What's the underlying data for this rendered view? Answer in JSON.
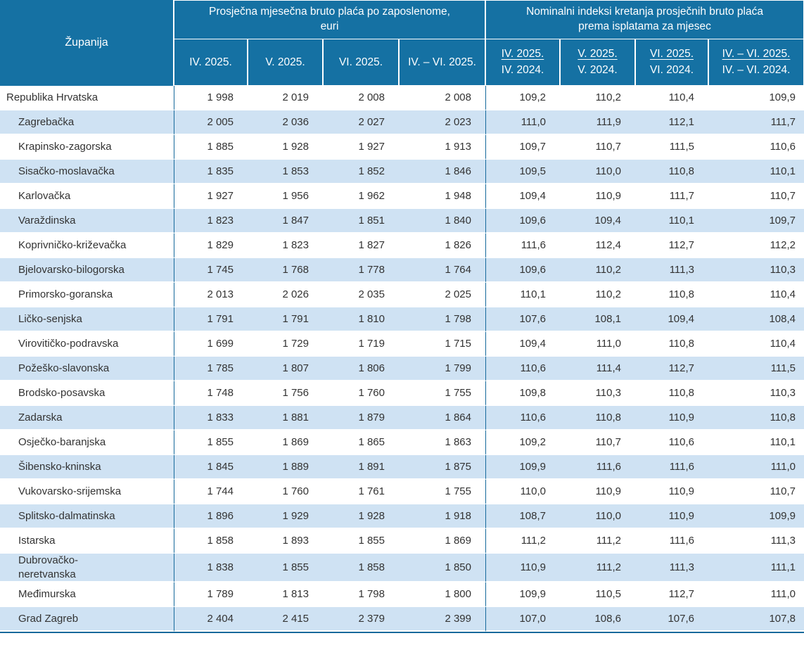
{
  "colors": {
    "header_bg": "#1571a3",
    "stripe_row_bg": "#cfe2f3",
    "separator_line": "#15699b",
    "body_text": "#333333",
    "header_text": "#ffffff"
  },
  "table": {
    "header": {
      "county": "Županija",
      "group_salary": "Prosječna mjesečna bruto plaća po zaposlenome,\neuri",
      "group_indices": "Nominalni indeksi kretanja prosječnih bruto plaća\nprema isplatama za mjesec",
      "salary_cols": [
        "IV. 2025.",
        "V. 2025.",
        "VI. 2025.",
        "IV. – VI. 2025."
      ],
      "index_cols": [
        {
          "num": "IV. 2025.",
          "den": "IV. 2024."
        },
        {
          "num": "V. 2025.",
          "den": "V. 2024."
        },
        {
          "num": "VI. 2025.",
          "den": "VI. 2024."
        },
        {
          "num": "IV. – VI. 2025.",
          "den": "IV. – VI. 2024."
        }
      ]
    },
    "rows": [
      {
        "name": "Republika Hrvatska",
        "indent": false,
        "values": [
          "1 998",
          "2 019",
          "2 008",
          "2 008",
          "109,2",
          "110,2",
          "110,4",
          "109,9"
        ]
      },
      {
        "name": "Zagrebačka",
        "indent": true,
        "values": [
          "2 005",
          "2 036",
          "2 027",
          "2 023",
          "111,0",
          "111,9",
          "112,1",
          "111,7"
        ]
      },
      {
        "name": "Krapinsko-zagorska",
        "indent": true,
        "values": [
          "1 885",
          "1 928",
          "1 927",
          "1 913",
          "109,7",
          "110,7",
          "111,5",
          "110,6"
        ]
      },
      {
        "name": "Sisačko-moslavačka",
        "indent": true,
        "values": [
          "1 835",
          "1 853",
          "1 852",
          "1 846",
          "109,5",
          "110,0",
          "110,8",
          "110,1"
        ]
      },
      {
        "name": "Karlovačka",
        "indent": true,
        "values": [
          "1 927",
          "1 956",
          "1 962",
          "1 948",
          "109,4",
          "110,9",
          "111,7",
          "110,7"
        ]
      },
      {
        "name": "Varaždinska",
        "indent": true,
        "values": [
          "1 823",
          "1 847",
          "1 851",
          "1 840",
          "109,6",
          "109,4",
          "110,1",
          "109,7"
        ]
      },
      {
        "name": "Koprivničko-križevačka",
        "indent": true,
        "values": [
          "1 829",
          "1 823",
          "1 827",
          "1 826",
          "111,6",
          "112,4",
          "112,7",
          "112,2"
        ]
      },
      {
        "name": "Bjelovarsko-bilogorska",
        "indent": true,
        "values": [
          "1 745",
          "1 768",
          "1 778",
          "1 764",
          "109,6",
          "110,2",
          "111,3",
          "110,3"
        ]
      },
      {
        "name": "Primorsko-goranska",
        "indent": true,
        "values": [
          "2 013",
          "2 026",
          "2 035",
          "2 025",
          "110,1",
          "110,2",
          "110,8",
          "110,4"
        ]
      },
      {
        "name": "Ličko-senjska",
        "indent": true,
        "values": [
          "1 791",
          "1 791",
          "1 810",
          "1 798",
          "107,6",
          "108,1",
          "109,4",
          "108,4"
        ]
      },
      {
        "name": "Virovitičko-podravska",
        "indent": true,
        "values": [
          "1 699",
          "1 729",
          "1 719",
          "1 715",
          "109,4",
          "111,0",
          "110,8",
          "110,4"
        ]
      },
      {
        "name": "Požeško-slavonska",
        "indent": true,
        "values": [
          "1 785",
          "1 807",
          "1 806",
          "1 799",
          "110,6",
          "111,4",
          "112,7",
          "111,5"
        ]
      },
      {
        "name": "Brodsko-posavska",
        "indent": true,
        "values": [
          "1 748",
          "1 756",
          "1 760",
          "1 755",
          "109,8",
          "110,3",
          "110,8",
          "110,3"
        ]
      },
      {
        "name": "Zadarska",
        "indent": true,
        "values": [
          "1 833",
          "1 881",
          "1 879",
          "1 864",
          "110,6",
          "110,8",
          "110,9",
          "110,8"
        ]
      },
      {
        "name": "Osječko-baranjska",
        "indent": true,
        "values": [
          "1 855",
          "1 869",
          "1 865",
          "1 863",
          "109,2",
          "110,7",
          "110,6",
          "110,1"
        ]
      },
      {
        "name": "Šibensko-kninska",
        "indent": true,
        "values": [
          "1 845",
          "1 889",
          "1 891",
          "1 875",
          "109,9",
          "111,6",
          "111,6",
          "111,0"
        ]
      },
      {
        "name": "Vukovarsko-srijemska",
        "indent": true,
        "values": [
          "1 744",
          "1 760",
          "1 761",
          "1 755",
          "110,0",
          "110,9",
          "110,9",
          "110,7"
        ]
      },
      {
        "name": "Splitsko-dalmatinska",
        "indent": true,
        "values": [
          "1 896",
          "1 929",
          "1 928",
          "1 918",
          "108,7",
          "110,0",
          "110,9",
          "109,9"
        ]
      },
      {
        "name": "Istarska",
        "indent": true,
        "values": [
          "1 858",
          "1 893",
          "1 855",
          "1 869",
          "111,2",
          "111,2",
          "111,6",
          "111,3"
        ]
      },
      {
        "name": "Dubrovačko-\nneretvanska",
        "indent": true,
        "values": [
          "1 838",
          "1 855",
          "1 858",
          "1 850",
          "110,9",
          "111,2",
          "111,3",
          "111,1"
        ]
      },
      {
        "name": "Međimurska",
        "indent": true,
        "values": [
          "1 789",
          "1 813",
          "1 798",
          "1 800",
          "109,9",
          "110,5",
          "112,7",
          "111,0"
        ]
      },
      {
        "name": "Grad Zagreb",
        "indent": true,
        "values": [
          "2 404",
          "2 415",
          "2 379",
          "2 399",
          "107,0",
          "108,6",
          "107,6",
          "107,8"
        ]
      }
    ]
  },
  "chart_data": {
    "type": "table",
    "title": "",
    "column_groups": [
      "Prosječna mjesečna bruto plaća po zaposlenome, euri",
      "Nominalni indeksi kretanja prosječnih bruto plaća prema isplatama za mjesec"
    ],
    "columns": [
      "Županija",
      "IV. 2025.",
      "V. 2025.",
      "VI. 2025.",
      "IV. – VI. 2025.",
      "IV. 2025. / IV. 2024.",
      "V. 2025. / V. 2024.",
      "VI. 2025. / VI. 2024.",
      "IV. – VI. 2025. / IV. – VI. 2024."
    ],
    "rows": [
      [
        "Republika Hrvatska",
        1998,
        2019,
        2008,
        2008,
        109.2,
        110.2,
        110.4,
        109.9
      ],
      [
        "Zagrebačka",
        2005,
        2036,
        2027,
        2023,
        111.0,
        111.9,
        112.1,
        111.7
      ],
      [
        "Krapinsko-zagorska",
        1885,
        1928,
        1927,
        1913,
        109.7,
        110.7,
        111.5,
        110.6
      ],
      [
        "Sisačko-moslavačka",
        1835,
        1853,
        1852,
        1846,
        109.5,
        110.0,
        110.8,
        110.1
      ],
      [
        "Karlovačka",
        1927,
        1956,
        1962,
        1948,
        109.4,
        110.9,
        111.7,
        110.7
      ],
      [
        "Varaždinska",
        1823,
        1847,
        1851,
        1840,
        109.6,
        109.4,
        110.1,
        109.7
      ],
      [
        "Koprivničko-križevačka",
        1829,
        1823,
        1827,
        1826,
        111.6,
        112.4,
        112.7,
        112.2
      ],
      [
        "Bjelovarsko-bilogorska",
        1745,
        1768,
        1778,
        1764,
        109.6,
        110.2,
        111.3,
        110.3
      ],
      [
        "Primorsko-goranska",
        2013,
        2026,
        2035,
        2025,
        110.1,
        110.2,
        110.8,
        110.4
      ],
      [
        "Ličko-senjska",
        1791,
        1791,
        1810,
        1798,
        107.6,
        108.1,
        109.4,
        108.4
      ],
      [
        "Virovitičko-podravska",
        1699,
        1729,
        1719,
        1715,
        109.4,
        111.0,
        110.8,
        110.4
      ],
      [
        "Požeško-slavonska",
        1785,
        1807,
        1806,
        1799,
        110.6,
        111.4,
        112.7,
        111.5
      ],
      [
        "Brodsko-posavska",
        1748,
        1756,
        1760,
        1755,
        109.8,
        110.3,
        110.8,
        110.3
      ],
      [
        "Zadarska",
        1833,
        1881,
        1879,
        1864,
        110.6,
        110.8,
        110.9,
        110.8
      ],
      [
        "Osječko-baranjska",
        1855,
        1869,
        1865,
        1863,
        109.2,
        110.7,
        110.6,
        110.1
      ],
      [
        "Šibensko-kninska",
        1845,
        1889,
        1891,
        1875,
        109.9,
        111.6,
        111.6,
        111.0
      ],
      [
        "Vukovarsko-srijemska",
        1744,
        1760,
        1761,
        1755,
        110.0,
        110.9,
        110.9,
        110.7
      ],
      [
        "Splitsko-dalmatinska",
        1896,
        1929,
        1928,
        1918,
        108.7,
        110.0,
        110.9,
        109.9
      ],
      [
        "Istarska",
        1858,
        1893,
        1855,
        1869,
        111.2,
        111.2,
        111.6,
        111.3
      ],
      [
        "Dubrovačko-neretvanska",
        1838,
        1855,
        1858,
        1850,
        110.9,
        111.2,
        111.3,
        111.1
      ],
      [
        "Međimurska",
        1789,
        1813,
        1798,
        1800,
        109.9,
        110.5,
        112.7,
        111.0
      ],
      [
        "Grad Zagreb",
        2404,
        2415,
        2379,
        2399,
        107.0,
        108.6,
        107.6,
        107.8
      ]
    ]
  }
}
